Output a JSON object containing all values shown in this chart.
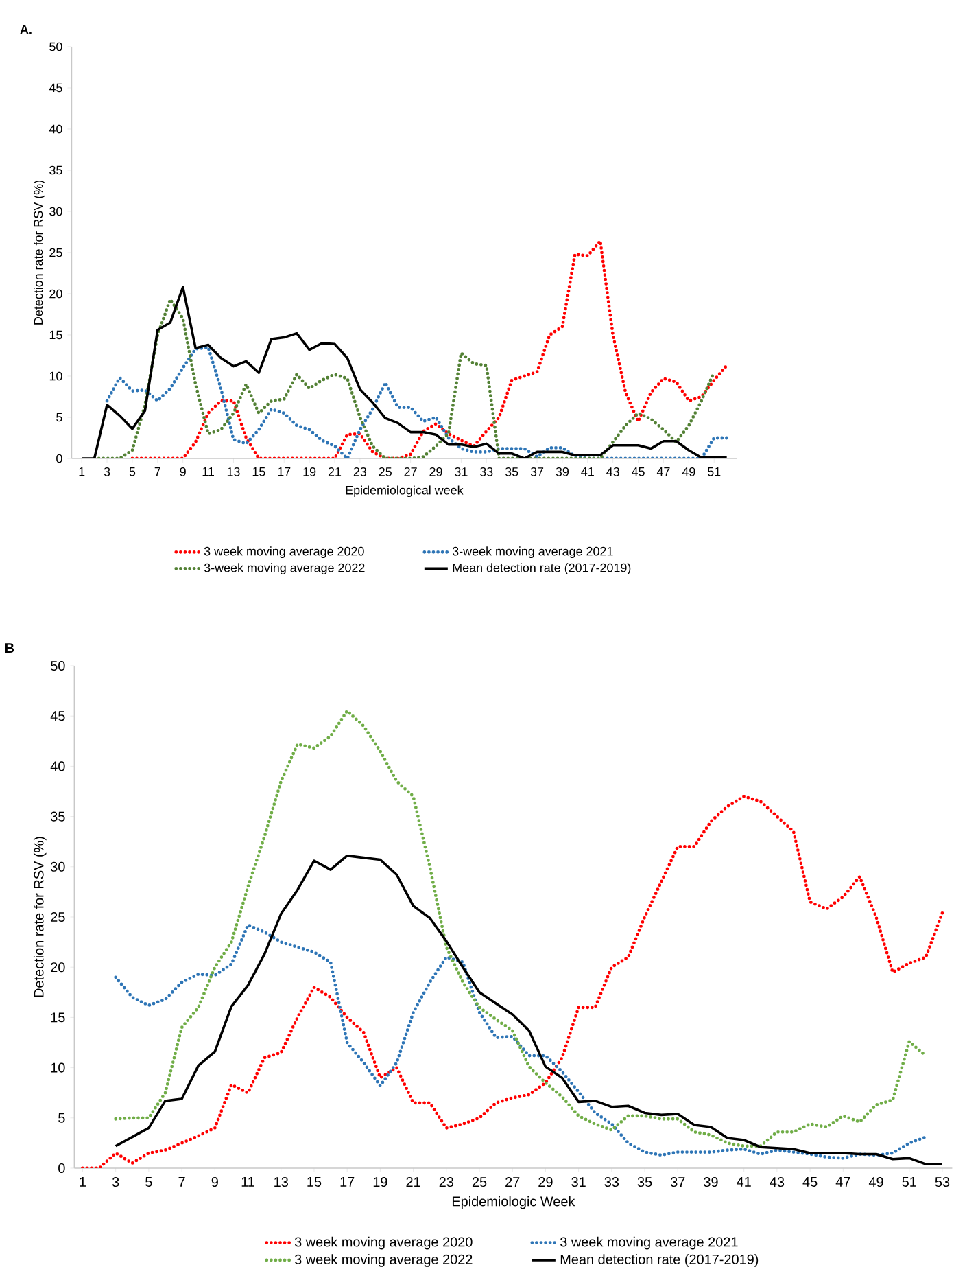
{
  "chart_data": [
    {
      "type": "line",
      "title": "A.",
      "xlabel": "Epidemiological week",
      "ylabel": "Detection rate for RSV (%)",
      "legend": "bottom",
      "x": [
        1,
        2,
        3,
        4,
        5,
        6,
        7,
        8,
        9,
        10,
        11,
        12,
        13,
        14,
        15,
        16,
        17,
        18,
        19,
        20,
        21,
        22,
        23,
        24,
        25,
        26,
        27,
        28,
        29,
        30,
        31,
        32,
        33,
        34,
        35,
        36,
        37,
        38,
        39,
        40,
        41,
        42,
        43,
        44,
        45,
        46,
        47,
        48,
        49,
        50,
        51,
        52
      ],
      "xlim": [
        0.2,
        52.8
      ],
      "xticks": [
        1,
        3,
        5,
        7,
        9,
        11,
        13,
        15,
        17,
        19,
        21,
        23,
        25,
        27,
        29,
        31,
        33,
        35,
        37,
        39,
        41,
        43,
        45,
        47,
        49,
        51
      ],
      "ylim": [
        0,
        50
      ],
      "yticks": [
        0,
        5,
        10,
        15,
        20,
        25,
        30,
        35,
        40,
        45,
        50
      ],
      "series": [
        {
          "name": "3 week moving average 2020",
          "color": "#ff0000",
          "line_style": "dotted",
          "values": [
            null,
            null,
            null,
            null,
            0,
            0,
            0,
            0,
            0,
            2,
            5.5,
            7,
            7,
            2.5,
            0,
            0,
            0,
            0,
            0,
            0,
            0,
            2.9,
            3,
            0.8,
            0,
            0,
            0.5,
            3.3,
            4.2,
            3,
            2.2,
            1.5,
            3.3,
            5,
            9.5,
            10,
            10.5,
            15,
            16,
            24.8,
            24.6,
            26.4,
            15,
            8,
            4.5,
            8,
            9.7,
            9.3,
            7,
            7.5,
            9.5,
            11.3
          ]
        },
        {
          "name": "3-week moving average 2021",
          "color": "#2e75b6",
          "line_style": "dotted",
          "values": [
            null,
            null,
            7,
            9.8,
            8.2,
            8.3,
            7,
            8.5,
            11,
            13.3,
            13.5,
            8.5,
            2.3,
            1.8,
            3.5,
            6,
            5.5,
            4,
            3.5,
            2.2,
            1.5,
            0,
            3.5,
            6,
            9.2,
            6.2,
            6.2,
            4.5,
            5,
            2.5,
            1.2,
            0.8,
            0.8,
            1.2,
            1.2,
            1.2,
            0.2,
            1.3,
            1.3,
            0.3,
            0,
            0,
            0,
            0,
            0,
            0,
            0,
            0,
            0,
            0,
            2.5,
            2.5
          ]
        },
        {
          "name": "3-week moving average 2022",
          "color": "#538135",
          "line_style": "dotted",
          "values": [
            null,
            0,
            0,
            0,
            1,
            6.5,
            15,
            19.3,
            17,
            9,
            3,
            3.5,
            5.5,
            9,
            5.5,
            7,
            7.2,
            10.2,
            8.5,
            9.5,
            10.2,
            9.7,
            5,
            1.5,
            0,
            0,
            0,
            0.2,
            1.5,
            3,
            12.8,
            11.5,
            11.3,
            0,
            0,
            0,
            0,
            0,
            0,
            0,
            0,
            0,
            2,
            4,
            5.5,
            4.8,
            3.5,
            2,
            4,
            7,
            10.5,
            null
          ]
        },
        {
          "name": "Mean detection rate  (2017-2019)",
          "color": "#000000",
          "line_style": "solid",
          "values": [
            0,
            0,
            6.5,
            5.2,
            3.6,
            5.8,
            15.6,
            16.5,
            20.8,
            13.4,
            13.8,
            12.2,
            11.2,
            11.8,
            10.4,
            14.5,
            14.7,
            15.2,
            13.2,
            14,
            13.9,
            12.2,
            8.4,
            6.8,
            4.9,
            4.3,
            3.2,
            3.2,
            2.9,
            1.7,
            1.7,
            1.4,
            1.8,
            0.6,
            0.6,
            0,
            0.8,
            0.8,
            0.8,
            0.4,
            0.4,
            0.4,
            1.6,
            1.6,
            1.6,
            1.2,
            2.1,
            2.1,
            1,
            0.1,
            0.1,
            0.1
          ]
        }
      ]
    },
    {
      "type": "line",
      "title": "B",
      "xlabel": "Epidemiologic Week",
      "ylabel": "Detection rate for RSV (%)",
      "legend": "bottom",
      "x": [
        1,
        2,
        3,
        4,
        5,
        6,
        7,
        8,
        9,
        10,
        11,
        12,
        13,
        14,
        15,
        16,
        17,
        18,
        19,
        20,
        21,
        22,
        23,
        24,
        25,
        26,
        27,
        28,
        29,
        30,
        31,
        32,
        33,
        34,
        35,
        36,
        37,
        38,
        39,
        40,
        41,
        42,
        43,
        44,
        45,
        46,
        47,
        48,
        49,
        50,
        51,
        52,
        53
      ],
      "xlim": [
        0.5,
        53.6
      ],
      "xticks": [
        1,
        3,
        5,
        7,
        9,
        11,
        13,
        15,
        17,
        19,
        21,
        23,
        25,
        27,
        29,
        31,
        33,
        35,
        37,
        39,
        41,
        43,
        45,
        47,
        49,
        51,
        53
      ],
      "ylim": [
        0,
        50
      ],
      "yticks": [
        0,
        5,
        10,
        15,
        20,
        25,
        30,
        35,
        40,
        45,
        50
      ],
      "series": [
        {
          "name": "3 week moving average 2020",
          "color": "#ff0000",
          "line_style": "dotted",
          "values": [
            0,
            0,
            1.5,
            0.5,
            1.5,
            1.8,
            2.5,
            3.2,
            4,
            8.3,
            7.5,
            11,
            11.5,
            15,
            18,
            17,
            15,
            13.5,
            9,
            10,
            6.5,
            6.5,
            4,
            4.4,
            5,
            6.5,
            7,
            7.3,
            8.5,
            11,
            16,
            16,
            20,
            21,
            25,
            28.5,
            32,
            32,
            34.5,
            36,
            37,
            36.5,
            35,
            33.5,
            26.5,
            25.8,
            27,
            29,
            25,
            19.5,
            20.4,
            21,
            25.4
          ]
        },
        {
          "name": "3 week moving average 2021",
          "color": "#2e75b6",
          "line_style": "dotted",
          "values": [
            null,
            null,
            19,
            17,
            16.2,
            16.8,
            18.5,
            19.3,
            19.2,
            20.3,
            24.2,
            23.5,
            22.5,
            22,
            21.5,
            20.5,
            12.5,
            10.5,
            8.2,
            10.5,
            15.5,
            18.5,
            21,
            20.5,
            15.5,
            13,
            13.1,
            11.2,
            11.2,
            9.6,
            7.6,
            5.5,
            4.4,
            2.5,
            1.6,
            1.3,
            1.6,
            1.6,
            1.6,
            1.8,
            1.9,
            1.4,
            1.8,
            1.6,
            1.4,
            1.1,
            1,
            1.4,
            1.3,
            1.5,
            2.5,
            3.1,
            null
          ]
        },
        {
          "name": "3 week moving average 2022",
          "color": "#70ad47",
          "line_style": "dotted",
          "values": [
            null,
            null,
            4.9,
            5,
            5,
            7.5,
            14,
            16,
            20,
            22.5,
            28,
            33,
            38.5,
            42.2,
            41.8,
            43,
            45.5,
            44,
            41.5,
            38.5,
            37,
            30,
            22,
            18.5,
            16,
            14.8,
            13.7,
            10.1,
            8.5,
            7.1,
            5.2,
            4.4,
            3.8,
            5.2,
            5.2,
            4.9,
            4.9,
            3.6,
            3.3,
            2.5,
            2.2,
            2.2,
            3.6,
            3.6,
            4.4,
            4.1,
            5.2,
            4.6,
            6.3,
            6.8,
            12.6,
            11.2,
            null
          ]
        },
        {
          "name": "Mean detection rate (2017-2019)",
          "color": "#000000",
          "line_style": "solid",
          "values": [
            null,
            null,
            2.2,
            3.1,
            4,
            6.7,
            6.9,
            10.2,
            11.6,
            16.1,
            18.2,
            21.3,
            25.3,
            27.7,
            30.6,
            29.7,
            31.1,
            30.9,
            30.7,
            29.2,
            26.1,
            24.9,
            22.6,
            20,
            17.5,
            16.4,
            15.3,
            13.7,
            10.1,
            9,
            6.6,
            6.7,
            6.1,
            6.2,
            5.5,
            5.3,
            5.4,
            4.3,
            4.1,
            3,
            2.8,
            2.1,
            2,
            1.9,
            1.5,
            1.5,
            1.5,
            1.4,
            1.4,
            0.9,
            1,
            0.4,
            0.4
          ]
        }
      ]
    }
  ]
}
